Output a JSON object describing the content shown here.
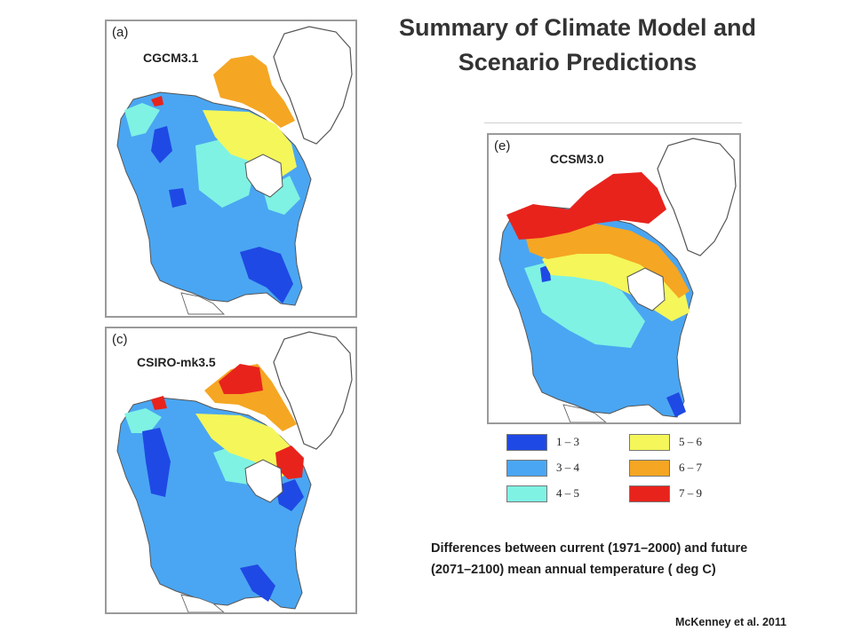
{
  "title": {
    "line1": "Summary of Climate Model and",
    "line2": "Scenario Predictions"
  },
  "panels": [
    {
      "letter": "(a)",
      "model": "CGCM3.1"
    },
    {
      "letter": "(c)",
      "model": "CSIRO-mk3.5"
    },
    {
      "letter": "(e)",
      "model": "CCSM3.0"
    }
  ],
  "legend": [
    {
      "label": "1 – 3",
      "color": "#1f49e4"
    },
    {
      "label": "3 – 4",
      "color": "#4aa6f2"
    },
    {
      "label": "4 – 5",
      "color": "#7ff2e4"
    },
    {
      "label": "5 – 6",
      "color": "#f4f65a"
    },
    {
      "label": "6 – 7",
      "color": "#f5a623"
    },
    {
      "label": "7 – 9",
      "color": "#e8231c"
    }
  ],
  "caption": {
    "line1": "Differences between current (1971–2000) and future",
    "line2": "(2071–2100) mean annual temperature ( deg C)"
  },
  "citation": "McKenney et al. 2011"
}
